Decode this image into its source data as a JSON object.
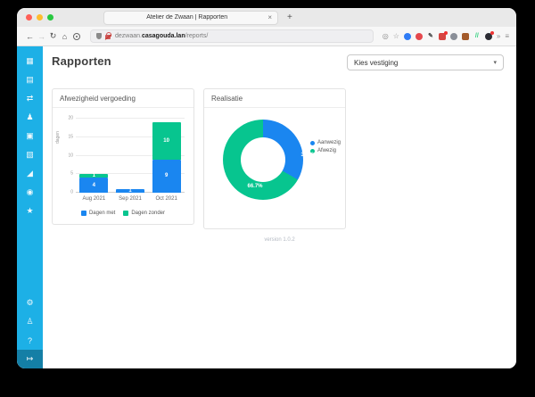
{
  "browser": {
    "tab": {
      "title": "Atelier de Zwaan | Rapporten",
      "close": "×",
      "new_tab": "+"
    },
    "nav": {
      "back": "←",
      "forward": "→",
      "reload": "↻",
      "home": "⌂"
    },
    "url": {
      "prefix": "dezwaan.",
      "domain": "casagouda.lan",
      "path": "/reports/"
    },
    "icons": {
      "page_actions": "◎",
      "bookmark": "☆",
      "overflow": "»",
      "menu": "≡"
    },
    "extensions": [
      {
        "name": "blue-extension",
        "color": "#2f7cf6",
        "radius": "50%"
      },
      {
        "name": "adblock-extension",
        "color": "#e5484d",
        "radius": "50%"
      },
      {
        "name": "pen-extension",
        "color": "transparent",
        "glyph": "✎",
        "glyph_color": "#4a4a4a"
      },
      {
        "name": "screenshot-extension",
        "color": "#d64541",
        "radius": "2px",
        "badge": true
      },
      {
        "name": "paw-extension",
        "color": "#8a8f98",
        "radius": "50%"
      },
      {
        "name": "storage-extension",
        "color": "#a35a2a",
        "radius": "2px"
      },
      {
        "name": "slashes-extension",
        "color": "transparent",
        "glyph": "//",
        "glyph_color": "#2bd07a"
      },
      {
        "name": "password-extension",
        "color": "#2b2b33",
        "radius": "50%",
        "badge": true
      }
    ]
  },
  "sidebar": {
    "top_icons": [
      {
        "name": "grid",
        "glyph": "▦"
      },
      {
        "name": "id-card",
        "glyph": "▤"
      },
      {
        "name": "swap-arrows",
        "glyph": "⇄"
      },
      {
        "name": "person",
        "glyph": "♟"
      },
      {
        "name": "bus",
        "glyph": "▣"
      },
      {
        "name": "calendar",
        "glyph": "▧"
      },
      {
        "name": "chart",
        "glyph": "◢"
      },
      {
        "name": "people",
        "glyph": "◉"
      },
      {
        "name": "star",
        "glyph": "★"
      }
    ],
    "bottom_icons": [
      {
        "name": "gear",
        "glyph": "⚙"
      },
      {
        "name": "profile",
        "glyph": "♙"
      },
      {
        "name": "help",
        "glyph": "?"
      },
      {
        "name": "logout",
        "glyph": "↦",
        "active": true
      }
    ]
  },
  "page": {
    "title": "Rapporten",
    "select_value": "Kies vestiging",
    "select_chevron": "▾",
    "version": "version 1.0.2"
  },
  "colors": {
    "sidebar": "#1db0e6",
    "series_blue": "#1a86f0",
    "series_green": "#07c58f"
  },
  "chart_data": [
    {
      "type": "bar",
      "stacked": true,
      "title": "Afwezigheid vergoeding",
      "categories": [
        "Aug 2021",
        "Sep 2021",
        "Oct 2021"
      ],
      "series": [
        {
          "name": "Dagen met",
          "color": "#1a86f0",
          "values": [
            4,
            1,
            9
          ]
        },
        {
          "name": "Dagen zonder",
          "color": "#07c58f",
          "values": [
            1,
            0,
            10
          ]
        }
      ],
      "xlabel": "",
      "ylabel": "dagen",
      "ylim": [
        0,
        20
      ],
      "yticks": [
        0,
        5,
        10,
        15,
        20
      ],
      "grid": true,
      "legend_position": "bottom"
    },
    {
      "type": "pie",
      "donut": true,
      "title": "Realisatie",
      "labels": [
        "Aanwezig",
        "Afwezig"
      ],
      "values": [
        33.3,
        66.7
      ],
      "value_labels": [
        "33.3%",
        "66.7%"
      ],
      "colors": [
        "#1a86f0",
        "#07c58f"
      ],
      "legend_position": "right"
    }
  ]
}
